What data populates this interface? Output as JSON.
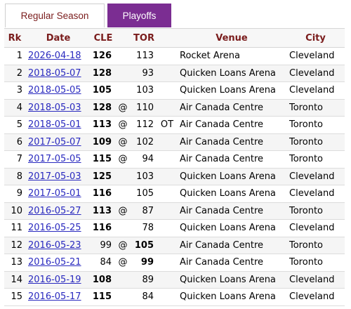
{
  "tabs": [
    {
      "label": "Regular Season",
      "active": false
    },
    {
      "label": "Playoffs",
      "active": true
    }
  ],
  "table": {
    "headers": {
      "rk": "Rk",
      "date": "Date",
      "cle": "CLE",
      "at": "",
      "tor": "TOR",
      "ot": "",
      "venue": "Venue",
      "city": "City"
    },
    "rows": [
      {
        "rk": "1",
        "date": "2026-04-18",
        "cle": "126",
        "cle_bold": true,
        "at": "",
        "tor": "113",
        "tor_bold": false,
        "ot": "",
        "venue": "Rocket Arena",
        "city": "Cleveland"
      },
      {
        "rk": "2",
        "date": "2018-05-07",
        "cle": "128",
        "cle_bold": true,
        "at": "",
        "tor": "93",
        "tor_bold": false,
        "ot": "",
        "venue": "Quicken Loans Arena",
        "city": "Cleveland"
      },
      {
        "rk": "3",
        "date": "2018-05-05",
        "cle": "105",
        "cle_bold": true,
        "at": "",
        "tor": "103",
        "tor_bold": false,
        "ot": "",
        "venue": "Quicken Loans Arena",
        "city": "Cleveland"
      },
      {
        "rk": "4",
        "date": "2018-05-03",
        "cle": "128",
        "cle_bold": true,
        "at": "@",
        "tor": "110",
        "tor_bold": false,
        "ot": "",
        "venue": "Air Canada Centre",
        "city": "Toronto"
      },
      {
        "rk": "5",
        "date": "2018-05-01",
        "cle": "113",
        "cle_bold": true,
        "at": "@",
        "tor": "112",
        "tor_bold": false,
        "ot": "OT",
        "venue": "Air Canada Centre",
        "city": "Toronto"
      },
      {
        "rk": "6",
        "date": "2017-05-07",
        "cle": "109",
        "cle_bold": true,
        "at": "@",
        "tor": "102",
        "tor_bold": false,
        "ot": "",
        "venue": "Air Canada Centre",
        "city": "Toronto"
      },
      {
        "rk": "7",
        "date": "2017-05-05",
        "cle": "115",
        "cle_bold": true,
        "at": "@",
        "tor": "94",
        "tor_bold": false,
        "ot": "",
        "venue": "Air Canada Centre",
        "city": "Toronto"
      },
      {
        "rk": "8",
        "date": "2017-05-03",
        "cle": "125",
        "cle_bold": true,
        "at": "",
        "tor": "103",
        "tor_bold": false,
        "ot": "",
        "venue": "Quicken Loans Arena",
        "city": "Cleveland"
      },
      {
        "rk": "9",
        "date": "2017-05-01",
        "cle": "116",
        "cle_bold": true,
        "at": "",
        "tor": "105",
        "tor_bold": false,
        "ot": "",
        "venue": "Quicken Loans Arena",
        "city": "Cleveland"
      },
      {
        "rk": "10",
        "date": "2016-05-27",
        "cle": "113",
        "cle_bold": true,
        "at": "@",
        "tor": "87",
        "tor_bold": false,
        "ot": "",
        "venue": "Air Canada Centre",
        "city": "Toronto"
      },
      {
        "rk": "11",
        "date": "2016-05-25",
        "cle": "116",
        "cle_bold": true,
        "at": "",
        "tor": "78",
        "tor_bold": false,
        "ot": "",
        "venue": "Quicken Loans Arena",
        "city": "Cleveland"
      },
      {
        "rk": "12",
        "date": "2016-05-23",
        "cle": "99",
        "cle_bold": false,
        "at": "@",
        "tor": "105",
        "tor_bold": true,
        "ot": "",
        "venue": "Air Canada Centre",
        "city": "Toronto"
      },
      {
        "rk": "13",
        "date": "2016-05-21",
        "cle": "84",
        "cle_bold": false,
        "at": "@",
        "tor": "99",
        "tor_bold": true,
        "ot": "",
        "venue": "Air Canada Centre",
        "city": "Toronto"
      },
      {
        "rk": "14",
        "date": "2016-05-19",
        "cle": "108",
        "cle_bold": true,
        "at": "",
        "tor": "89",
        "tor_bold": false,
        "ot": "",
        "venue": "Quicken Loans Arena",
        "city": "Cleveland"
      },
      {
        "rk": "15",
        "date": "2016-05-17",
        "cle": "115",
        "cle_bold": true,
        "at": "",
        "tor": "84",
        "tor_bold": false,
        "ot": "",
        "venue": "Quicken Loans Arena",
        "city": "Cleveland"
      }
    ]
  },
  "colors": {
    "accent": "#7b2d92",
    "header_text": "#7a1c1c",
    "link": "#2a2abf"
  }
}
